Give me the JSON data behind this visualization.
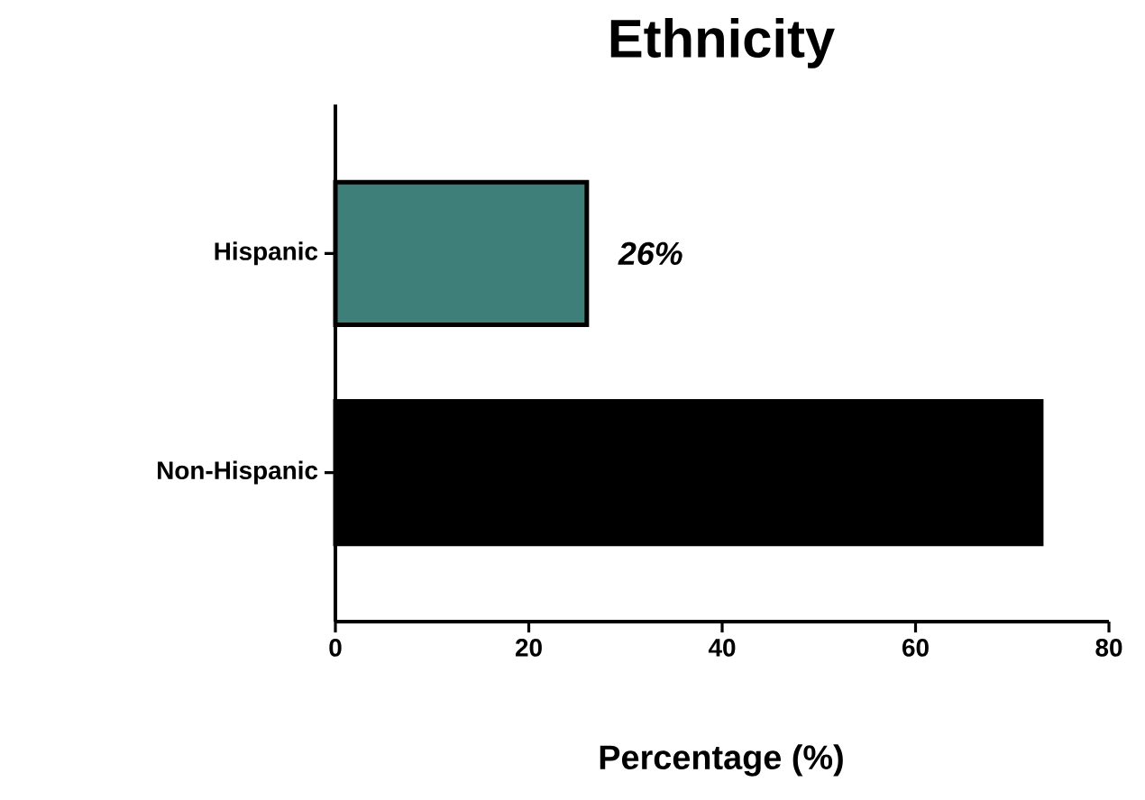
{
  "chart_data": {
    "type": "bar",
    "orientation": "horizontal",
    "title": "Ethnicity",
    "xlabel": "Percentage (%)",
    "categories": [
      "Hispanic",
      "Non-Hispanic"
    ],
    "values": [
      26,
      73
    ],
    "colors": [
      "#3e8079",
      "#000000"
    ],
    "value_labels": [
      "26%",
      null
    ],
    "xlim": [
      0,
      80
    ],
    "xticks": [
      0,
      20,
      40,
      60,
      80
    ]
  }
}
